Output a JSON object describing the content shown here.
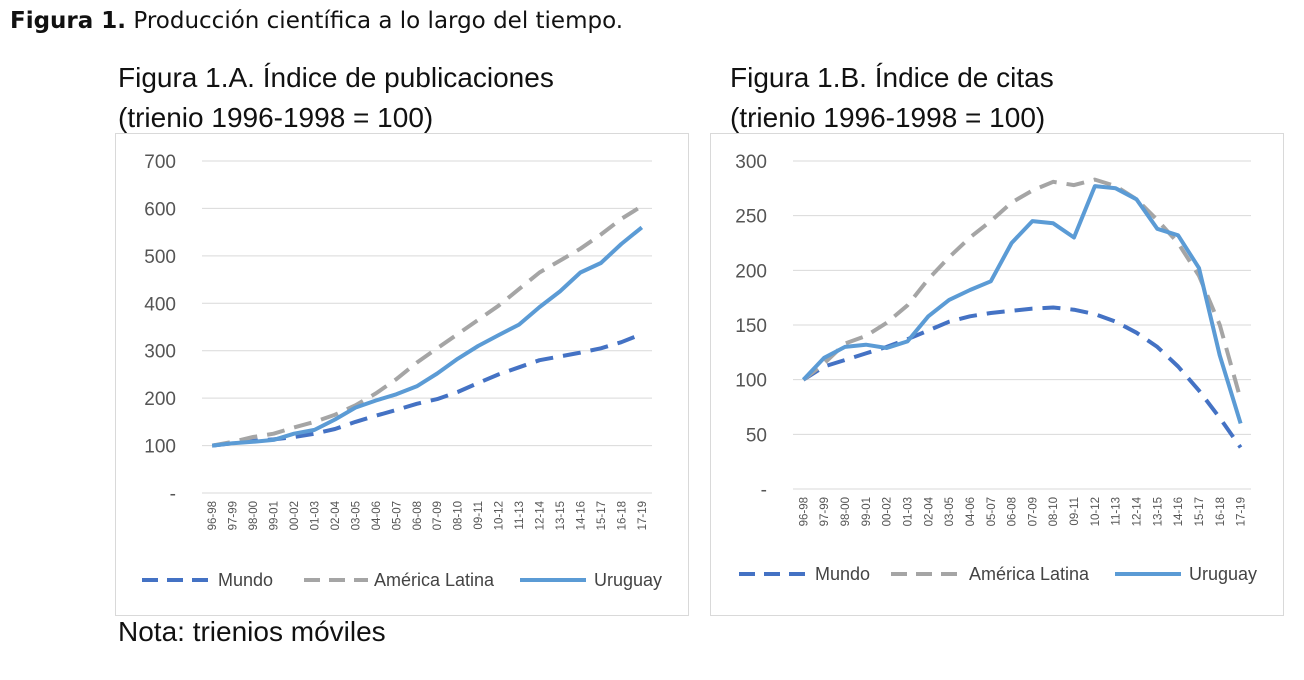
{
  "figure": {
    "label": "Figura 1.",
    "caption": " Producción científica a lo largo del tiempo."
  },
  "note": "Nota: trienios móviles",
  "legend": {
    "mundo": "Mundo",
    "latam": "América Latina",
    "uruguay": "Uruguay"
  },
  "colors": {
    "mundo": "#4472c4",
    "latam": "#a5a5a5",
    "uruguay": "#5b9bd5",
    "grid": "#d9d9d9"
  },
  "chart_data": [
    {
      "type": "line",
      "title_line1": "Figura 1.A. Índice de publicaciones",
      "title_line2": "(trienio 1996-1998 = 100)",
      "categories": [
        "96-98",
        "97-99",
        "98-00",
        "99-01",
        "00-02",
        "01-03",
        "02-04",
        "03-05",
        "04-06",
        "05-07",
        "06-08",
        "07-09",
        "08-10",
        "09-11",
        "10-12",
        "11-13",
        "12-14",
        "13-15",
        "14-16",
        "15-17",
        "16-18",
        "17-19"
      ],
      "ylim": [
        0,
        700
      ],
      "yticks": [
        0,
        100,
        200,
        300,
        400,
        500,
        600,
        700
      ],
      "ytick_labels": [
        "-",
        "100",
        "200",
        "300",
        "400",
        "500",
        "600",
        "700"
      ],
      "grid": true,
      "legend_position": "bottom",
      "series": [
        {
          "name": "Mundo",
          "key": "mundo",
          "style": "dashed",
          "values": [
            100,
            105,
            110,
            113,
            118,
            125,
            135,
            150,
            163,
            175,
            188,
            198,
            213,
            232,
            250,
            265,
            280,
            288,
            296,
            305,
            318,
            335
          ]
        },
        {
          "name": "América Latina",
          "key": "latam",
          "style": "dashed",
          "values": [
            100,
            108,
            118,
            125,
            138,
            150,
            165,
            185,
            210,
            240,
            275,
            305,
            335,
            365,
            395,
            430,
            465,
            490,
            515,
            545,
            578,
            605
          ]
        },
        {
          "name": "Uruguay",
          "key": "uruguay",
          "style": "solid",
          "values": [
            100,
            105,
            108,
            112,
            125,
            133,
            155,
            180,
            195,
            208,
            225,
            252,
            283,
            310,
            333,
            355,
            392,
            425,
            465,
            485,
            525,
            560
          ]
        }
      ]
    },
    {
      "type": "line",
      "title_line1": "Figura 1.B. Índice de citas",
      "title_line2": "(trienio 1996-1998 = 100)",
      "categories": [
        "96-98",
        "97-99",
        "98-00",
        "99-01",
        "00-02",
        "01-03",
        "02-04",
        "03-05",
        "04-06",
        "05-07",
        "06-08",
        "07-09",
        "08-10",
        "09-11",
        "10-12",
        "11-13",
        "12-14",
        "13-15",
        "14-16",
        "15-17",
        "16-18",
        "17-19"
      ],
      "ylim": [
        0,
        300
      ],
      "yticks": [
        0,
        50,
        100,
        150,
        200,
        250,
        300
      ],
      "ytick_labels": [
        "-",
        "50",
        "100",
        "150",
        "200",
        "250",
        "300"
      ],
      "grid": true,
      "legend_position": "bottom",
      "series": [
        {
          "name": "Mundo",
          "key": "mundo",
          "style": "dashed",
          "values": [
            100,
            112,
            118,
            124,
            130,
            137,
            145,
            153,
            158,
            161,
            163,
            165,
            166,
            164,
            160,
            153,
            143,
            130,
            112,
            90,
            65,
            38
          ]
        },
        {
          "name": "América Latina",
          "key": "latam",
          "style": "dashed",
          "values": [
            100,
            115,
            133,
            140,
            152,
            168,
            192,
            212,
            230,
            245,
            262,
            273,
            281,
            278,
            283,
            277,
            265,
            246,
            225,
            195,
            150,
            82
          ]
        },
        {
          "name": "Uruguay",
          "key": "uruguay",
          "style": "solid",
          "values": [
            100,
            120,
            130,
            132,
            129,
            135,
            158,
            173,
            182,
            190,
            225,
            245,
            243,
            230,
            277,
            275,
            265,
            238,
            232,
            202,
            122,
            60
          ]
        }
      ]
    }
  ]
}
